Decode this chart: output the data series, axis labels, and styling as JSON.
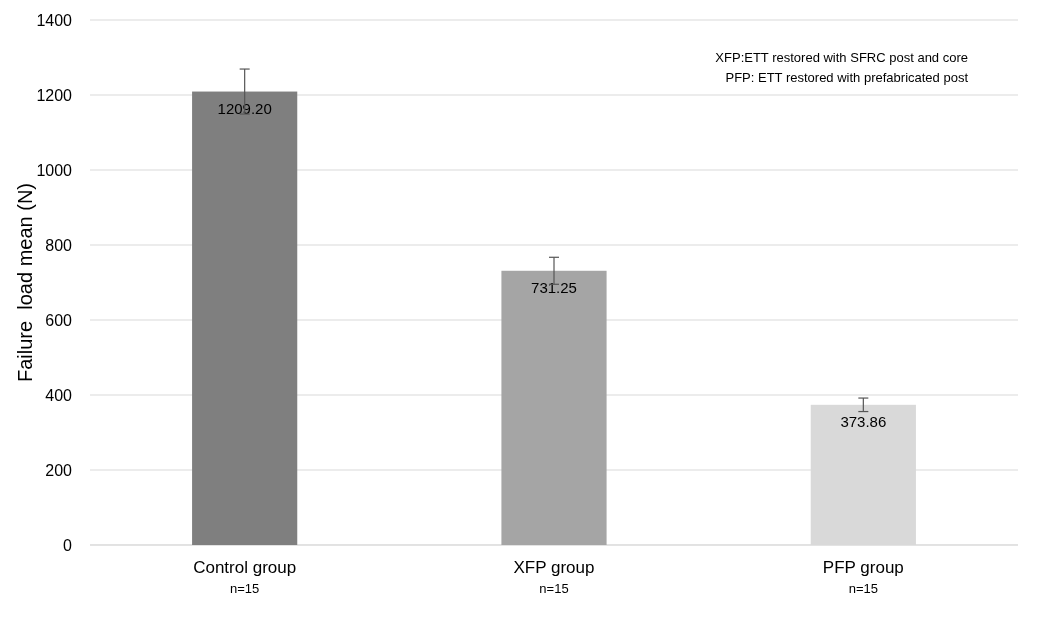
{
  "chart_data": {
    "type": "bar",
    "ylabel": "Failure  load mean (N)",
    "categories": [
      "Control group\nn=15",
      "XFP group\nn=15",
      "PFP group\nn=15"
    ],
    "values": [
      1209.2,
      731.25,
      373.86
    ],
    "colors": [
      "#7f7f7f",
      "#a5a5a5",
      "#d9d9d9"
    ],
    "errors": [
      60,
      36,
      18
    ],
    "value_labels": [
      "1209.20",
      "731.25",
      "373.86"
    ],
    "ylim": [
      0,
      1400
    ],
    "yticks": [
      0,
      200,
      400,
      600,
      800,
      1000,
      1200,
      1400
    ],
    "grid": "y",
    "annotations": [
      "XFP:ETT restored with SFRC post and core",
      "PFP: ETT restored with prefabricated post"
    ]
  }
}
